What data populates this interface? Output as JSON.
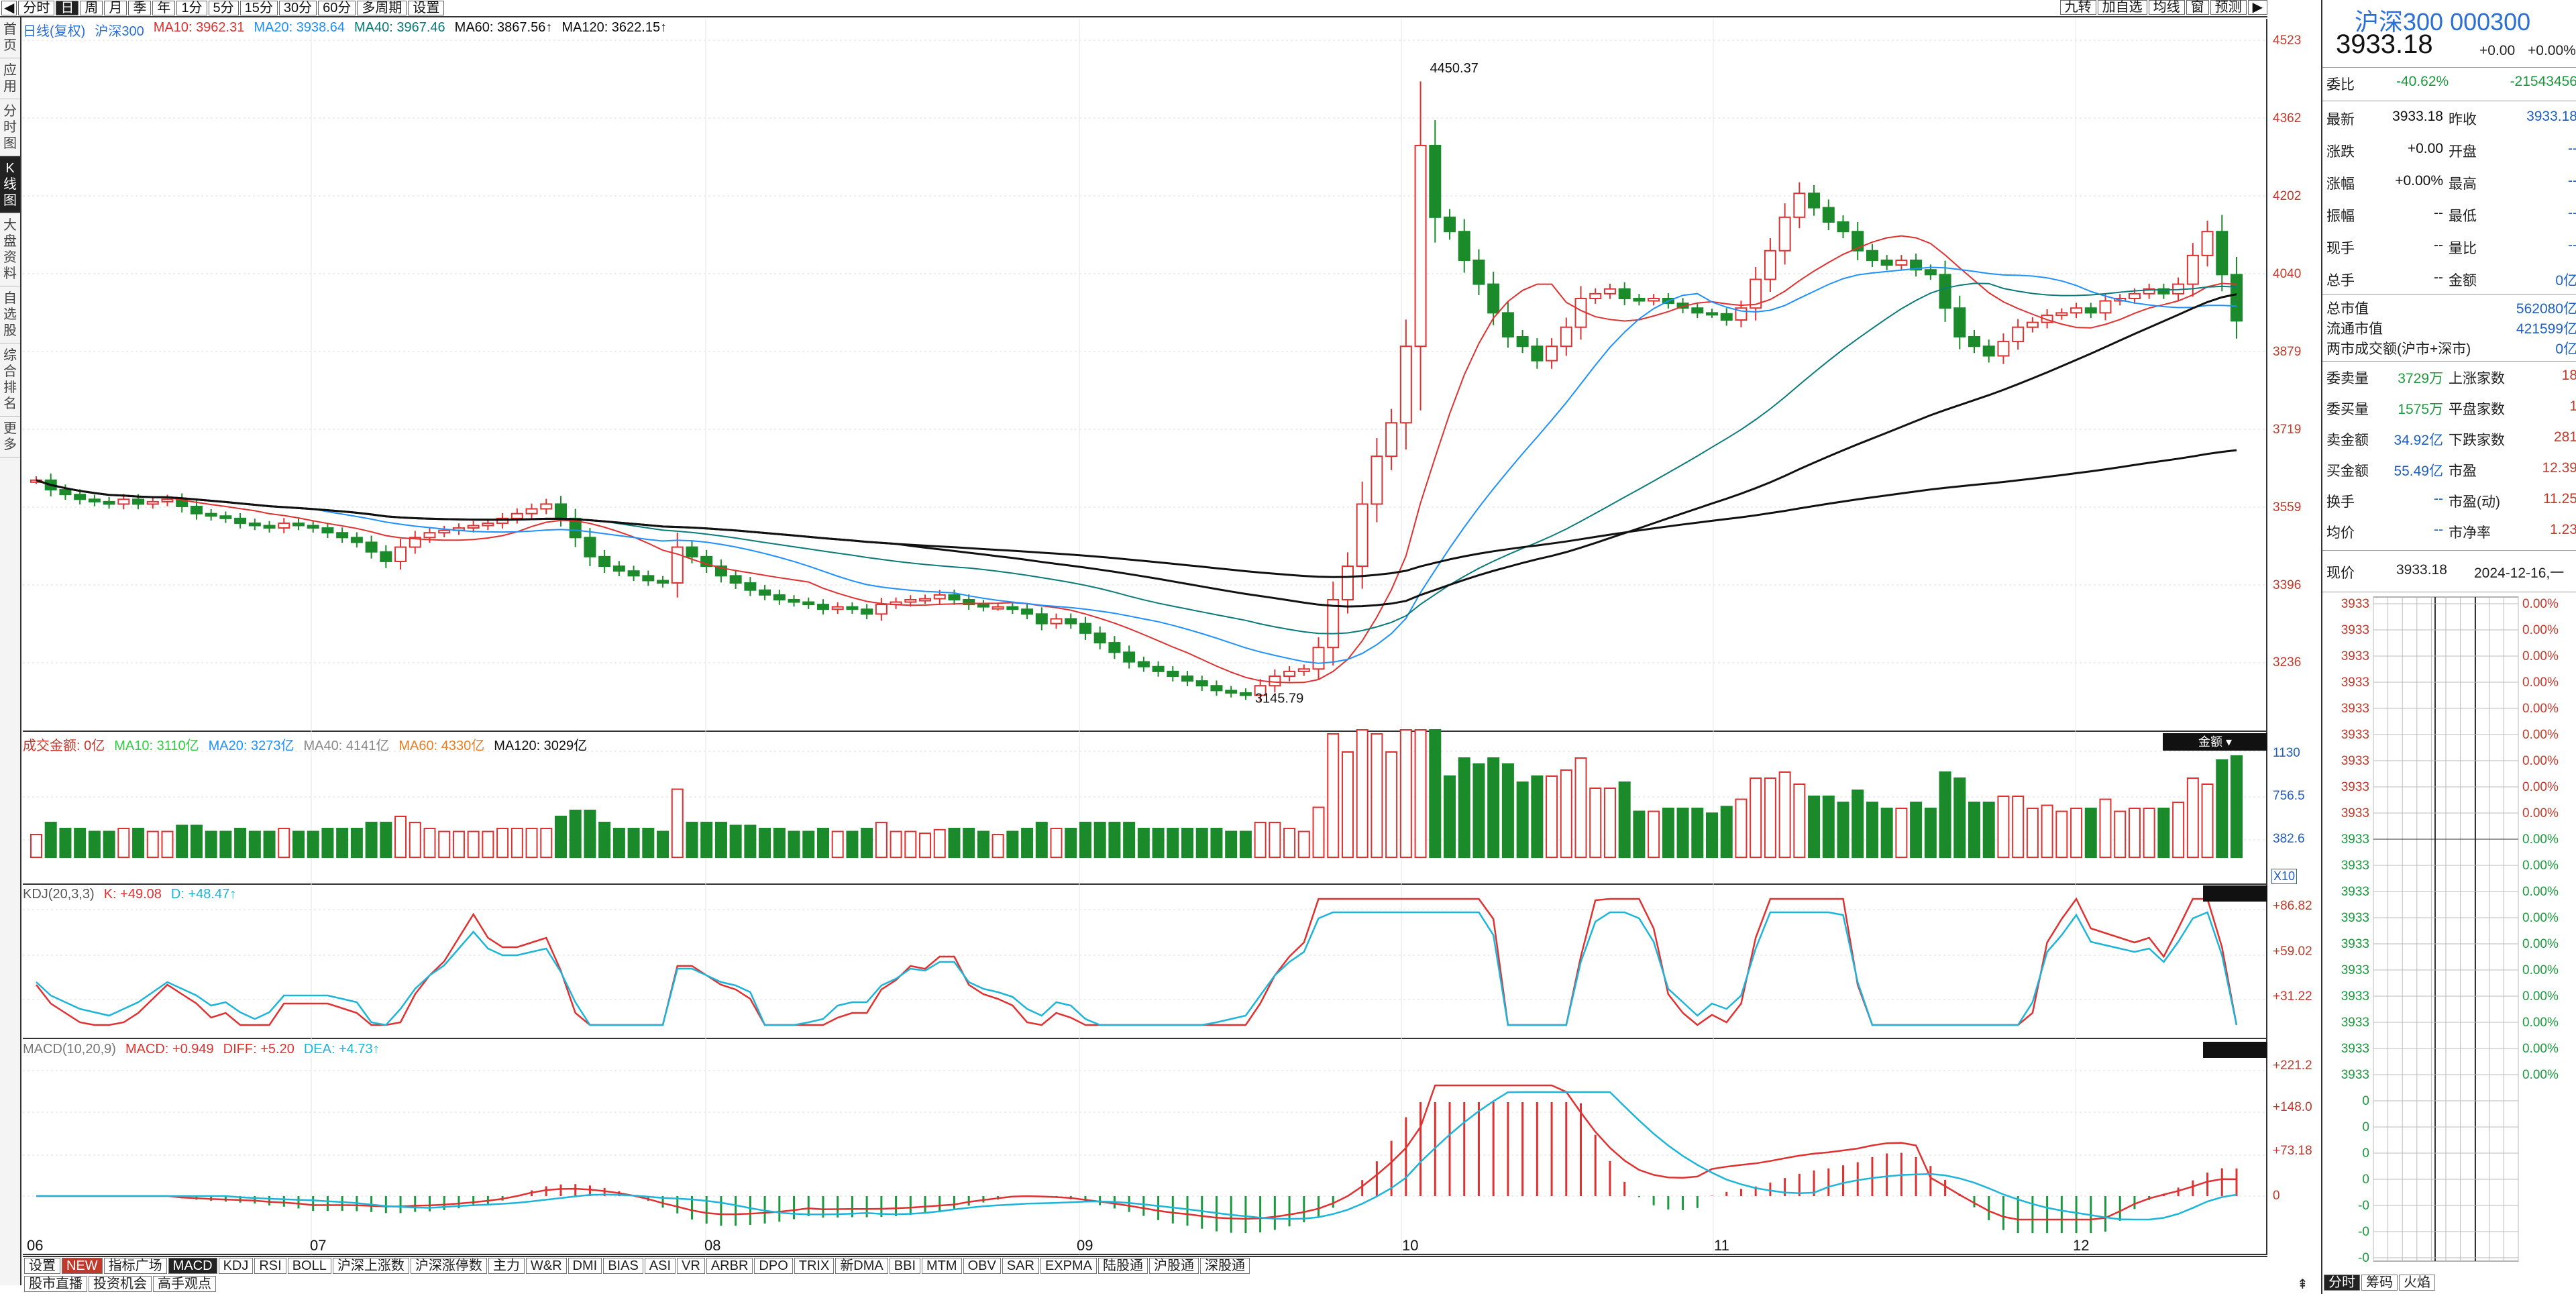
{
  "toolbar": {
    "periods": [
      "分时",
      "日",
      "周",
      "月",
      "季",
      "年",
      "1分",
      "5分",
      "15分",
      "30分",
      "60分",
      "多周期",
      "设置"
    ],
    "selected_period": "日",
    "right_buttons": [
      "九转",
      "加自选",
      "均线",
      "窗",
      "预测"
    ]
  },
  "sidebar": {
    "items": [
      "首页",
      "应用",
      "分时图",
      "K线图",
      "大盘资料",
      "自选股",
      "综合排名",
      "更多"
    ],
    "selected": "K线图"
  },
  "main_legend": {
    "period": "日线(复权)",
    "name": "沪深300",
    "ma10": "MA10: 3962.31",
    "ma20": "MA20: 3938.64",
    "ma40": "MA40: 3967.46",
    "ma60": "MA60: 3867.56↑",
    "ma120": "MA120: 3622.15↑"
  },
  "vol_legend": {
    "label": "成交金额: 0亿",
    "ma10": "MA10: 3110亿",
    "ma20": "MA20: 3273亿",
    "ma40": "MA40: 4141亿",
    "ma60": "MA60: 4330亿",
    "ma120": "MA120: 3029亿",
    "selector": "金额",
    "unit": "X10"
  },
  "kdj_legend": {
    "label": "KDJ(20,3,3)",
    "k": "K: +49.08",
    "d": "D: +48.47↑"
  },
  "macd_legend": {
    "label": "MACD(10,20,9)",
    "macd": "MACD: +0.949",
    "diff": "DIFF: +5.20",
    "dea": "DEA: +4.73↑"
  },
  "price_axis": [
    "4523",
    "4362",
    "4202",
    "4040",
    "3879",
    "3719",
    "3559",
    "3396",
    "3236"
  ],
  "vol_axis": [
    "1130",
    "756.5",
    "382.6"
  ],
  "kdj_axis": [
    "+86.82",
    "+59.02",
    "+31.22"
  ],
  "macd_axis": [
    "+221.2",
    "+148.0",
    "+73.18",
    "0"
  ],
  "months": [
    "06",
    "07",
    "08",
    "09",
    "10",
    "11",
    "12"
  ],
  "high_label": "4450.37",
  "low_label": "3145.79",
  "indicator_tabs": [
    "设置",
    "NEW",
    "指标广场",
    "MACD",
    "KDJ",
    "RSI",
    "BOLL",
    "沪深上涨数",
    "沪深涨停数",
    "主力",
    "W&R",
    "DMI",
    "BIAS",
    "ASI",
    "VR",
    "ARBR",
    "DPO",
    "TRIX",
    "新DMA",
    "BBI",
    "MTM",
    "OBV",
    "SAR",
    "EXPMA",
    "陆股通",
    "沪股通",
    "深股通"
  ],
  "selected_indicator": "MACD",
  "bottom_tabs": [
    "股市直播",
    "投资机会",
    "高手观点"
  ],
  "panel": {
    "title": "沪深300 000300",
    "price": "3933.18",
    "change": "+0.00",
    "change_pct": "+0.00%",
    "weibi": {
      "label": "委比",
      "pct": "-40.62%",
      "val": "-21543456"
    },
    "quote_rows": [
      [
        "最新",
        "3933.18",
        "昨收",
        "3933.18"
      ],
      [
        "涨跌",
        "+0.00",
        "开盘",
        "--"
      ],
      [
        "涨幅",
        "+0.00%",
        "最高",
        "--"
      ],
      [
        "振幅",
        "--",
        "最低",
        "--"
      ],
      [
        "现手",
        "--",
        "量比",
        "--"
      ],
      [
        "总手",
        "--",
        "金额",
        "0亿"
      ]
    ],
    "cap_rows": [
      [
        "总市值",
        "562080亿"
      ],
      [
        "流通市值",
        "421599亿"
      ],
      [
        "两市成交额(沪市+深市)",
        "0亿"
      ]
    ],
    "stat_rows": [
      [
        "委卖量",
        "3729万",
        "上涨家数",
        "18"
      ],
      [
        "委买量",
        "1575万",
        "平盘家数",
        "1"
      ],
      [
        "卖金额",
        "34.92亿",
        "下跌家数",
        "281"
      ],
      [
        "买金额",
        "55.49亿",
        "市盈",
        "12.39"
      ],
      [
        "换手",
        "--",
        "市盈(动)",
        "11.25"
      ],
      [
        "均价",
        "--",
        "市净率",
        "1.23"
      ]
    ],
    "now_label": "现价",
    "now_price": "3933.18",
    "now_date": "2024-12-16,一",
    "mini_left": [
      "3933",
      "3933",
      "3933",
      "3933",
      "3933",
      "3933",
      "3933",
      "3933",
      "3933",
      "3933",
      "3933",
      "3933",
      "3933",
      "3933",
      "3933",
      "3933",
      "3933",
      "3933",
      "3933",
      "0",
      "0",
      "0",
      "0",
      "-0",
      "-0",
      "-0",
      "-0"
    ],
    "mini_right": [
      "0.00%",
      "0.00%",
      "0.00%",
      "0.00%",
      "0.00%",
      "0.00%",
      "0.00%",
      "0.00%",
      "0.00%",
      "0.00%",
      "0.00%",
      "0.00%",
      "0.00%",
      "0.00%",
      "0.00%",
      "0.00%",
      "0.00%",
      "0.00%",
      "0.00%"
    ],
    "bottom_tabs": [
      "分时",
      "筹码",
      "火焰"
    ]
  },
  "chart_data": {
    "type": "candlestick",
    "title": "沪深300 日线",
    "x_months": [
      "06",
      "07",
      "08",
      "09",
      "10",
      "11",
      "12"
    ],
    "ylim": [
      3145.79,
      4523
    ],
    "closes": [
      3600,
      3580,
      3570,
      3560,
      3555,
      3550,
      3560,
      3550,
      3555,
      3560,
      3545,
      3530,
      3525,
      3520,
      3510,
      3505,
      3500,
      3510,
      3505,
      3500,
      3490,
      3480,
      3470,
      3450,
      3430,
      3460,
      3480,
      3490,
      3495,
      3500,
      3505,
      3510,
      3520,
      3530,
      3540,
      3550,
      3520,
      3480,
      3440,
      3420,
      3410,
      3400,
      3390,
      3385,
      3460,
      3440,
      3420,
      3400,
      3385,
      3370,
      3360,
      3350,
      3345,
      3340,
      3330,
      3335,
      3330,
      3320,
      3340,
      3345,
      3350,
      3352,
      3360,
      3350,
      3340,
      3335,
      3335,
      3330,
      3320,
      3300,
      3310,
      3300,
      3280,
      3260,
      3240,
      3220,
      3210,
      3200,
      3190,
      3180,
      3170,
      3160,
      3155,
      3150,
      3170,
      3190,
      3200,
      3205,
      3250,
      3350,
      3420,
      3550,
      3650,
      3720,
      3880,
      4300,
      4150,
      4120,
      4060,
      4010,
      3950,
      3900,
      3880,
      3850,
      3880,
      3920,
      3980,
      3990,
      4000,
      3980,
      3975,
      3980,
      3970,
      3960,
      3950,
      3948,
      3935,
      3960,
      4020,
      4080,
      4150,
      4200,
      4170,
      4140,
      4120,
      4080,
      4060,
      4050,
      4060,
      4040,
      4030,
      3960,
      3900,
      3880,
      3860,
      3890,
      3920,
      3930,
      3945,
      3950,
      3960,
      3950,
      3975,
      3980,
      3990,
      4000,
      3990,
      4010,
      4070,
      4120,
      4030,
      3933.18
    ]
  }
}
